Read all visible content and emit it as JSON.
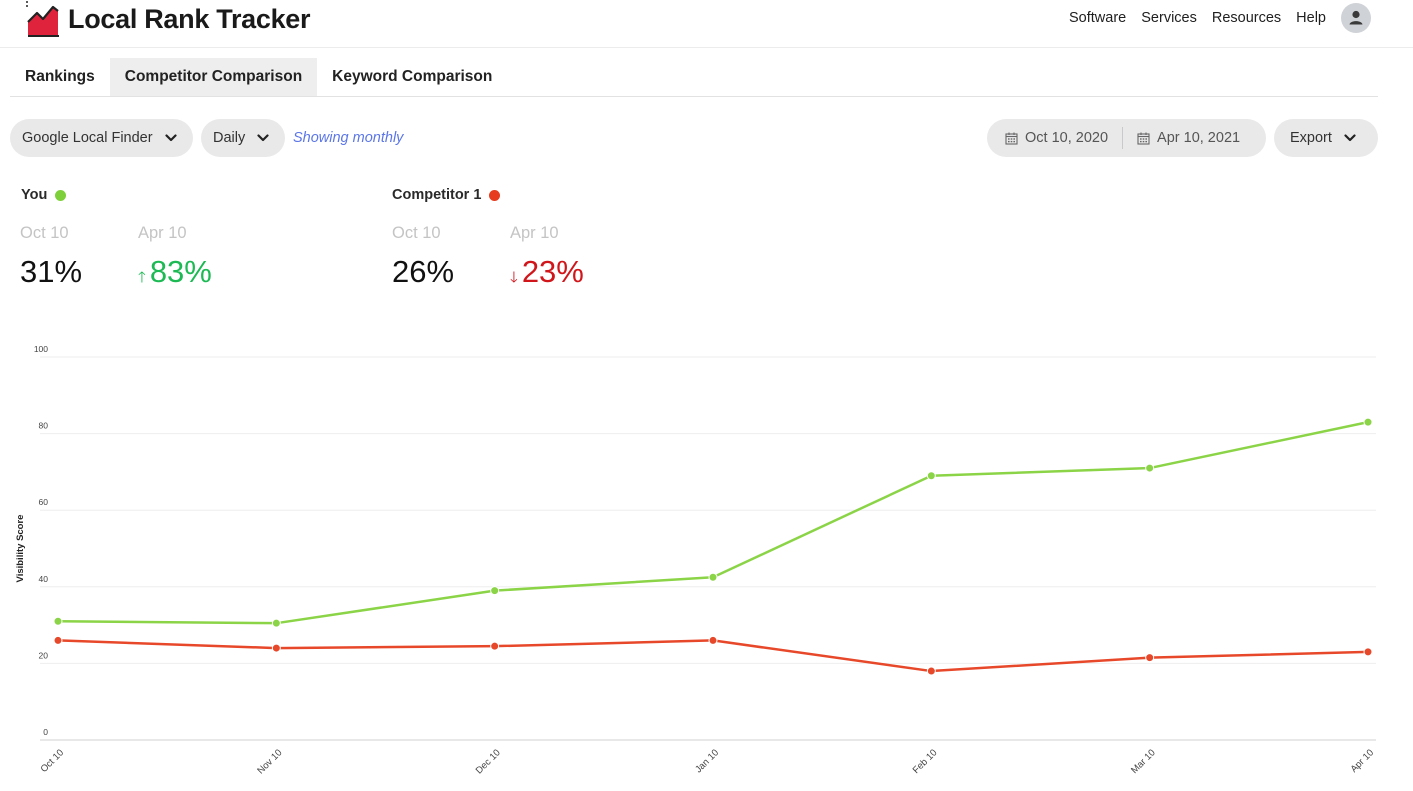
{
  "app": {
    "title": "Local Rank Tracker",
    "nav": [
      "Software",
      "Services",
      "Resources",
      "Help"
    ]
  },
  "tabs": [
    {
      "label": "Rankings",
      "active": false
    },
    {
      "label": "Competitor Comparison",
      "active": true
    },
    {
      "label": "Keyword Comparison",
      "active": false
    }
  ],
  "toolbar": {
    "source_select": "Google Local Finder",
    "interval_select": "Daily",
    "showing_note": "Showing monthly",
    "date_start": "Oct 10, 2020",
    "date_end": "Apr 10, 2021",
    "export_label": "Export"
  },
  "stats": {
    "you": {
      "name": "You",
      "color": "#7ed03b",
      "from_label": "Oct 10",
      "to_label": "Apr 10",
      "from_value": "31%",
      "to_value": "83%",
      "direction": "up",
      "change_color": "#1db954"
    },
    "competitor": {
      "name": "Competitor 1",
      "color": "#e63b1f",
      "from_label": "Oct 10",
      "to_label": "Apr 10",
      "from_value": "26%",
      "to_value": "23%",
      "direction": "down",
      "change_color": "#d0161b"
    }
  },
  "chart_data": {
    "type": "line",
    "title": "",
    "xlabel": "",
    "ylabel": "Visibility Score",
    "categories": [
      "Oct 10",
      "Nov 10",
      "Dec 10",
      "Jan 10",
      "Feb 10",
      "Mar 10",
      "Apr 10"
    ],
    "yticks": [
      0,
      20,
      40,
      60,
      80,
      100
    ],
    "ylim": [
      0,
      100
    ],
    "grid": true,
    "series": [
      {
        "name": "You",
        "color": "#8bd447",
        "values": [
          31,
          30.5,
          39,
          42.5,
          69,
          71,
          83
        ]
      },
      {
        "name": "Competitor 1",
        "color": "#e8482a",
        "values": [
          26,
          24,
          24.5,
          26,
          18,
          21.5,
          23
        ]
      }
    ]
  }
}
